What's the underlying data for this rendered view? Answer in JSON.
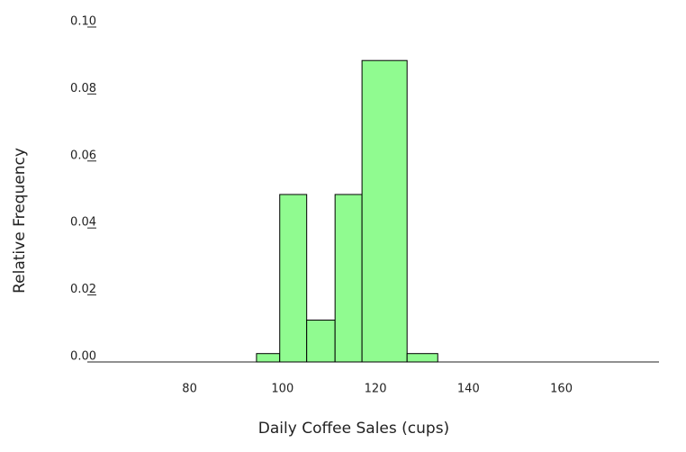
{
  "chart_data": {
    "type": "histogram",
    "xlabel": "Daily Coffee Sales (cups)",
    "ylabel": "Relative Frequency",
    "bins": [
      94.4,
      99.4,
      105.2,
      111.3,
      117.1,
      126.8,
      133.4
    ],
    "values": [
      0.0025,
      0.05,
      0.0125,
      0.05,
      0.09,
      0.0025
    ],
    "color": "#90fb90",
    "xlim": [
      58,
      181
    ],
    "xticks": [
      80,
      100,
      120,
      140,
      160
    ],
    "ylim": [
      0,
      0.1
    ],
    "yticks": [
      {
        "value": 0,
        "label": "0.00"
      },
      0.02,
      0.04,
      0.06,
      0.08,
      {
        "value": 0.1,
        "label": "0.10"
      }
    ]
  }
}
